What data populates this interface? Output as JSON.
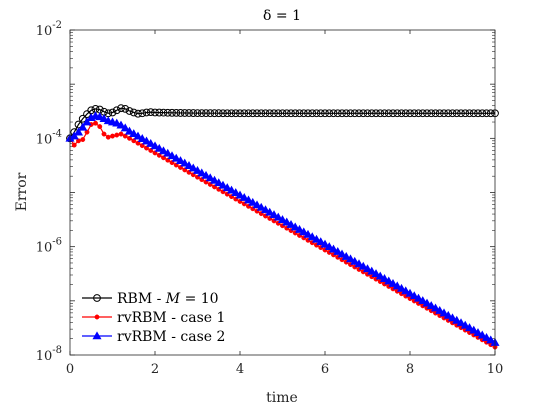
{
  "chart_data": {
    "type": "line",
    "title": "δ = 1",
    "xlabel": "time",
    "ylabel": "Error",
    "xlim": [
      0,
      10
    ],
    "ylim_exponents": [
      -8,
      -2
    ],
    "yscale": "log",
    "xticks": [
      "0",
      "2",
      "4",
      "6",
      "8",
      "10"
    ],
    "yticks": [
      {
        "base": "10",
        "exp": "-8"
      },
      {
        "base": "10",
        "exp": "-6"
      },
      {
        "base": "10",
        "exp": "-4"
      },
      {
        "base": "10",
        "exp": "-2"
      }
    ],
    "legend_position": "bottom-left",
    "series": [
      {
        "name": "RBM - M = 10",
        "color": "#000000",
        "marker": "circle",
        "points": [
          [
            0.0,
            0.0001
          ],
          [
            0.1,
            0.00013
          ],
          [
            0.2,
            0.00018
          ],
          [
            0.3,
            0.00023
          ],
          [
            0.4,
            0.00028
          ],
          [
            0.5,
            0.00033
          ],
          [
            0.6,
            0.00035
          ],
          [
            0.7,
            0.00034
          ],
          [
            0.8,
            0.00031
          ],
          [
            0.9,
            0.00029
          ],
          [
            1.0,
            0.0003
          ],
          [
            1.1,
            0.00033
          ],
          [
            1.2,
            0.00036
          ],
          [
            1.3,
            0.00035
          ],
          [
            1.4,
            0.00032
          ],
          [
            1.5,
            0.0003
          ],
          [
            1.6,
            0.000285
          ],
          [
            1.7,
            0.00029
          ],
          [
            1.8,
            0.0003
          ],
          [
            1.9,
            0.000305
          ],
          [
            2.0,
            0.0003
          ],
          [
            2.5,
            0.000295
          ],
          [
            3.0,
            0.000292
          ],
          [
            4.0,
            0.00029
          ],
          [
            5.0,
            0.00029
          ],
          [
            6.0,
            0.00029
          ],
          [
            7.0,
            0.00029
          ],
          [
            8.0,
            0.00029
          ],
          [
            9.0,
            0.00029
          ],
          [
            10.0,
            0.00029
          ]
        ]
      },
      {
        "name": "rvRBM - case 1",
        "color": "#ff0000",
        "marker": "dot",
        "points": [
          [
            0.0,
            0.0001
          ],
          [
            0.1,
            7.5e-05
          ],
          [
            0.2,
            9e-05
          ],
          [
            0.3,
            9.5e-05
          ],
          [
            0.4,
            0.00013
          ],
          [
            0.5,
            0.00018
          ],
          [
            0.6,
            0.00019
          ],
          [
            0.7,
            0.000165
          ],
          [
            0.8,
            0.00012
          ],
          [
            0.9,
            0.000105
          ],
          [
            1.0,
            0.00011
          ],
          [
            1.1,
            0.000115
          ],
          [
            1.2,
            0.00012
          ],
          [
            1.3,
            0.00011
          ],
          [
            1.4,
            0.0001
          ],
          [
            10.0,
            1.4e-08
          ]
        ]
      },
      {
        "name": "rvRBM - case 2",
        "color": "#0000ff",
        "marker": "triangle",
        "points": [
          [
            0.0,
            0.0001
          ],
          [
            0.1,
            0.00011
          ],
          [
            0.2,
            0.00013
          ],
          [
            0.3,
            0.00016
          ],
          [
            0.4,
            0.0002
          ],
          [
            0.5,
            0.00024
          ],
          [
            0.6,
            0.00026
          ],
          [
            0.7,
            0.00025
          ],
          [
            0.8,
            0.00023
          ],
          [
            0.9,
            0.00021
          ],
          [
            1.0,
            0.0002
          ],
          [
            1.1,
            0.00019
          ],
          [
            1.2,
            0.000175
          ],
          [
            1.3,
            0.000155
          ],
          [
            1.4,
            0.000135
          ],
          [
            10.0,
            1.7e-08
          ]
        ]
      }
    ]
  }
}
